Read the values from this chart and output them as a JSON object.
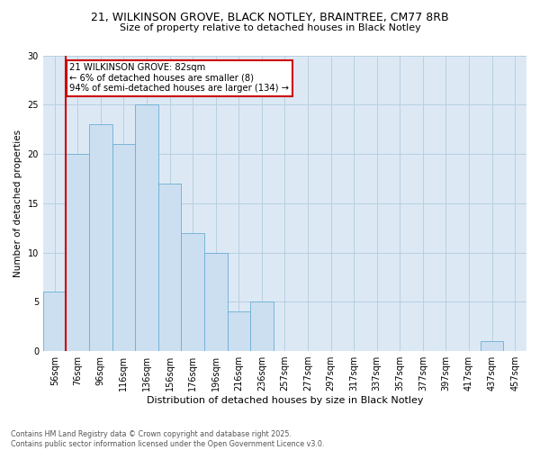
{
  "title_line1": "21, WILKINSON GROVE, BLACK NOTLEY, BRAINTREE, CM77 8RB",
  "title_line2": "Size of property relative to detached houses in Black Notley",
  "xlabel": "Distribution of detached houses by size in Black Notley",
  "ylabel": "Number of detached properties",
  "bar_values": [
    6,
    20,
    23,
    21,
    25,
    17,
    12,
    10,
    4,
    5,
    0,
    0,
    0,
    0,
    0,
    0,
    0,
    0,
    0,
    1,
    0
  ],
  "bar_labels": [
    "56sqm",
    "76sqm",
    "96sqm",
    "116sqm",
    "136sqm",
    "156sqm",
    "176sqm",
    "196sqm",
    "216sqm",
    "236sqm",
    "257sqm",
    "277sqm",
    "297sqm",
    "317sqm",
    "337sqm",
    "357sqm",
    "377sqm",
    "397sqm",
    "417sqm",
    "437sqm",
    "457sqm"
  ],
  "bar_color": "#ccdff0",
  "bar_edge_color": "#6aaed6",
  "vline_x_index": 1,
  "annotation_text": "21 WILKINSON GROVE: 82sqm\n← 6% of detached houses are smaller (8)\n94% of semi-detached houses are larger (134) →",
  "annotation_box_facecolor": "#ffffff",
  "annotation_box_edgecolor": "#cc0000",
  "vline_color": "#cc0000",
  "ylim": [
    0,
    30
  ],
  "yticks": [
    0,
    5,
    10,
    15,
    20,
    25,
    30
  ],
  "footer_text": "Contains HM Land Registry data © Crown copyright and database right 2025.\nContains public sector information licensed under the Open Government Licence v3.0.",
  "background_color": "#ffffff",
  "plot_bg_color": "#dce9f5",
  "grid_color": "#b8cfe0"
}
